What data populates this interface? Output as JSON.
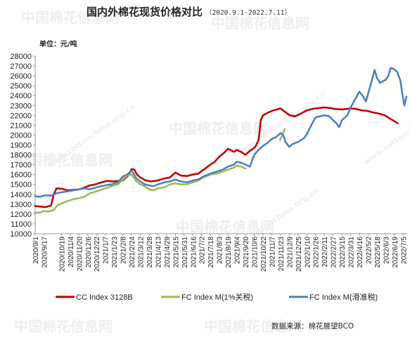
{
  "chart_data": {
    "type": "line",
    "title": "国内外棉花现货价格对比",
    "subtitle": "（2020.9.1-2022.7.11）",
    "unit_label": "单位：元/吨",
    "source_label": "数据来源：棉花展望BCO",
    "watermark_text": "中国棉花信息网",
    "watermark_url": "www.cottonchina.org.cn",
    "ylim": [
      10000,
      28000
    ],
    "yticks": [
      10000,
      11000,
      12000,
      13000,
      14000,
      15000,
      16000,
      17000,
      18000,
      19000,
      20000,
      21000,
      22000,
      23000,
      24000,
      25000,
      26000,
      27000,
      28000
    ],
    "xlim": [
      "2020/9/1",
      "2022/7/11"
    ],
    "xticks": [
      "2020/9/1",
      "2020/9/17",
      "2020/10/19",
      "2020/11/4",
      "2020/11/20",
      "2020/12/6",
      "2020/12/22",
      "2021/1/7",
      "2021/1/23",
      "2021/2/8",
      "2021/2/24",
      "2021/3/12",
      "2021/3/28",
      "2021/4/13",
      "2021/4/29",
      "2021/5/15",
      "2021/5/31",
      "2021/6/16",
      "2021/7/2",
      "2021/7/18",
      "2021/8/3",
      "2021/8/19",
      "2021/9/4",
      "2021/9/20",
      "2021/10/6",
      "2021/10/22",
      "2021/11/7",
      "2021/11/23",
      "2021/12/9",
      "2021/12/25",
      "2022/1/10",
      "2022/1/26",
      "2022/2/11",
      "2022/2/27",
      "2022/3/15",
      "2022/3/31",
      "2022/4/16",
      "2022/5/2",
      "2022/5/18",
      "2022/6/3",
      "2022/6/19",
      "2022/7/5"
    ],
    "grid": false,
    "legend_position": "bottom",
    "series": [
      {
        "name": "CC Index 3128B",
        "color": "#c00000",
        "points": [
          [
            "2020/9/1",
            12800
          ],
          [
            "2020/9/10",
            12750
          ],
          [
            "2020/9/20",
            12700
          ],
          [
            "2020/9/30",
            12850
          ],
          [
            "2020/10/5",
            14000
          ],
          [
            "2020/10/10",
            14600
          ],
          [
            "2020/10/20",
            14550
          ],
          [
            "2020/10/30",
            14400
          ],
          [
            "2020/11/10",
            14450
          ],
          [
            "2020/11/20",
            14500
          ],
          [
            "2020/12/1",
            14700
          ],
          [
            "2020/12/10",
            14900
          ],
          [
            "2020/12/20",
            15000
          ],
          [
            "2020/12/31",
            15200
          ],
          [
            "2021/1/10",
            15350
          ],
          [
            "2021/1/20",
            15300
          ],
          [
            "2021/1/31",
            15350
          ],
          [
            "2021/2/8",
            15400
          ],
          [
            "2021/2/18",
            15900
          ],
          [
            "2021/2/24",
            16550
          ],
          [
            "2021/3/1",
            16500
          ],
          [
            "2021/3/6",
            16000
          ],
          [
            "2021/3/12",
            15700
          ],
          [
            "2021/3/22",
            15400
          ],
          [
            "2021/4/1",
            15300
          ],
          [
            "2021/4/13",
            15400
          ],
          [
            "2021/4/25",
            15600
          ],
          [
            "2021/5/5",
            15700
          ],
          [
            "2021/5/15",
            16200
          ],
          [
            "2021/5/25",
            15900
          ],
          [
            "2021/6/5",
            15850
          ],
          [
            "2021/6/16",
            16000
          ],
          [
            "2021/6/26",
            16100
          ],
          [
            "2021/7/6",
            16500
          ],
          [
            "2021/7/18",
            17000
          ],
          [
            "2021/7/26",
            17300
          ],
          [
            "2021/8/3",
            17800
          ],
          [
            "2021/8/12",
            18200
          ],
          [
            "2021/8/19",
            18600
          ],
          [
            "2021/8/30",
            18300
          ],
          [
            "2021/9/4",
            18500
          ],
          [
            "2021/9/12",
            18300
          ],
          [
            "2021/9/20",
            18000
          ],
          [
            "2021/9/28",
            18400
          ],
          [
            "2021/10/1",
            18500
          ],
          [
            "2021/10/8",
            18800
          ],
          [
            "2021/10/14",
            19500
          ],
          [
            "2021/10/18",
            21500
          ],
          [
            "2021/10/22",
            22000
          ],
          [
            "2021/11/1",
            22300
          ],
          [
            "2021/11/10",
            22500
          ],
          [
            "2021/11/23",
            22700
          ],
          [
            "2021/11/30",
            22400
          ],
          [
            "2021/12/10",
            22000
          ],
          [
            "2021/12/20",
            21900
          ],
          [
            "2021/12/31",
            22200
          ],
          [
            "2022/1/10",
            22500
          ],
          [
            "2022/1/20",
            22650
          ],
          [
            "2022/1/26",
            22700
          ],
          [
            "2022/2/11",
            22800
          ],
          [
            "2022/2/21",
            22750
          ],
          [
            "2022/3/1",
            22650
          ],
          [
            "2022/3/15",
            22600
          ],
          [
            "2022/3/31",
            22700
          ],
          [
            "2022/4/10",
            22650
          ],
          [
            "2022/4/20",
            22500
          ],
          [
            "2022/5/1",
            22450
          ],
          [
            "2022/5/10",
            22300
          ],
          [
            "2022/5/20",
            22200
          ],
          [
            "2022/6/1",
            22000
          ],
          [
            "2022/6/10",
            21700
          ],
          [
            "2022/6/19",
            21400
          ],
          [
            "2022/6/25",
            21200
          ]
        ]
      },
      {
        "name": "FC Index M(1%关税)",
        "color": "#9bbb59",
        "points": [
          [
            "2020/9/1",
            12100
          ],
          [
            "2020/9/10",
            12150
          ],
          [
            "2020/9/17",
            12300
          ],
          [
            "2020/9/25",
            12250
          ],
          [
            "2020/10/5",
            12400
          ],
          [
            "2020/10/12",
            12900
          ],
          [
            "2020/10/19",
            13050
          ],
          [
            "2020/10/30",
            13300
          ],
          [
            "2020/11/10",
            13500
          ],
          [
            "2020/11/20",
            13600
          ],
          [
            "2020/11/30",
            13750
          ],
          [
            "2020/12/10",
            14100
          ],
          [
            "2020/12/22",
            14300
          ],
          [
            "2021/1/7",
            14600
          ],
          [
            "2021/1/18",
            14800
          ],
          [
            "2021/1/30",
            15000
          ],
          [
            "2021/2/8",
            15500
          ],
          [
            "2021/2/16",
            15900
          ],
          [
            "2021/2/24",
            16000
          ],
          [
            "2021/3/5",
            15300
          ],
          [
            "2021/3/12",
            15000
          ],
          [
            "2021/3/20",
            14800
          ],
          [
            "2021/3/28",
            14500
          ],
          [
            "2021/4/5",
            14400
          ],
          [
            "2021/4/13",
            14600
          ],
          [
            "2021/4/25",
            14700
          ],
          [
            "2021/5/5",
            15000
          ],
          [
            "2021/5/15",
            15100
          ],
          [
            "2021/5/25",
            15000
          ],
          [
            "2021/6/5",
            15000
          ],
          [
            "2021/6/16",
            15200
          ],
          [
            "2021/6/26",
            15400
          ],
          [
            "2021/7/5",
            15700
          ],
          [
            "2021/7/18",
            16000
          ],
          [
            "2021/7/30",
            16100
          ],
          [
            "2021/8/10",
            16300
          ],
          [
            "2021/8/19",
            16500
          ],
          [
            "2021/8/30",
            16700
          ],
          [
            "2021/9/4",
            16900
          ],
          [
            "2021/9/12",
            16800
          ],
          [
            "2021/9/20",
            16600
          ],
          [
            "2021/11/22",
            19500
          ],
          [
            "2021/12/1",
            20600
          ]
        ]
      },
      {
        "name": "FC Index M(滑准税)",
        "color": "#4f81bd",
        "points": [
          [
            "2020/9/1",
            13800
          ],
          [
            "2020/9/10",
            13750
          ],
          [
            "2020/9/20",
            13900
          ],
          [
            "2020/9/30",
            13850
          ],
          [
            "2020/10/10",
            14100
          ],
          [
            "2020/10/19",
            14200
          ],
          [
            "2020/10/30",
            14300
          ],
          [
            "2020/11/10",
            14400
          ],
          [
            "2020/11/20",
            14500
          ],
          [
            "2020/11/30",
            14600
          ],
          [
            "2020/12/10",
            14500
          ],
          [
            "2020/12/22",
            14700
          ],
          [
            "2021/1/7",
            14900
          ],
          [
            "2021/1/18",
            15000
          ],
          [
            "2021/1/30",
            15200
          ],
          [
            "2021/2/8",
            15800
          ],
          [
            "2021/2/16",
            16000
          ],
          [
            "2021/2/24",
            16400
          ],
          [
            "2021/3/5",
            15600
          ],
          [
            "2021/3/12",
            15300
          ],
          [
            "2021/3/20",
            15000
          ],
          [
            "2021/3/28",
            14900
          ],
          [
            "2021/4/5",
            14800
          ],
          [
            "2021/4/13",
            15000
          ],
          [
            "2021/4/25",
            15200
          ],
          [
            "2021/5/5",
            15300
          ],
          [
            "2021/5/15",
            15500
          ],
          [
            "2021/5/25",
            15300
          ],
          [
            "2021/6/5",
            15200
          ],
          [
            "2021/6/16",
            15400
          ],
          [
            "2021/6/26",
            15500
          ],
          [
            "2021/7/5",
            15800
          ],
          [
            "2021/7/18",
            16100
          ],
          [
            "2021/7/30",
            16300
          ],
          [
            "2021/8/10",
            16500
          ],
          [
            "2021/8/19",
            16800
          ],
          [
            "2021/8/30",
            17000
          ],
          [
            "2021/9/4",
            17300
          ],
          [
            "2021/9/12",
            17200
          ],
          [
            "2021/9/20",
            17000
          ],
          [
            "2021/9/28",
            16800
          ],
          [
            "2021/10/6",
            18000
          ],
          [
            "2021/10/14",
            18500
          ],
          [
            "2021/10/22",
            18900
          ],
          [
            "2021/10/30",
            19200
          ],
          [
            "2021/11/7",
            19600
          ],
          [
            "2021/11/15",
            19800
          ],
          [
            "2021/11/23",
            20200
          ],
          [
            "2021/11/28",
            20000
          ],
          [
            "2021/12/2",
            19300
          ],
          [
            "2021/12/9",
            18800
          ],
          [
            "2021/12/15",
            19100
          ],
          [
            "2021/12/25",
            19300
          ],
          [
            "2022/1/5",
            19700
          ],
          [
            "2022/1/10",
            20100
          ],
          [
            "2022/1/20",
            21200
          ],
          [
            "2022/1/26",
            21800
          ],
          [
            "2022/2/11",
            22000
          ],
          [
            "2022/2/20",
            21900
          ],
          [
            "2022/2/27",
            21500
          ],
          [
            "2022/3/5",
            21200
          ],
          [
            "2022/3/10",
            20800
          ],
          [
            "2022/3/15",
            21500
          ],
          [
            "2022/3/25",
            22000
          ],
          [
            "2022/3/31",
            22800
          ],
          [
            "2022/4/8",
            23600
          ],
          [
            "2022/4/16",
            24400
          ],
          [
            "2022/4/22",
            24000
          ],
          [
            "2022/4/28",
            23400
          ],
          [
            "2022/5/2",
            24200
          ],
          [
            "2022/5/8",
            25400
          ],
          [
            "2022/5/14",
            26600
          ],
          [
            "2022/5/18",
            25800
          ],
          [
            "2022/5/24",
            25300
          ],
          [
            "2022/6/3",
            25600
          ],
          [
            "2022/6/8",
            26000
          ],
          [
            "2022/6/12",
            26800
          ],
          [
            "2022/6/18",
            26700
          ],
          [
            "2022/6/24",
            26400
          ],
          [
            "2022/6/30",
            25500
          ],
          [
            "2022/7/4",
            24000
          ],
          [
            "2022/7/7",
            23000
          ],
          [
            "2022/7/11",
            23900
          ]
        ]
      }
    ]
  }
}
